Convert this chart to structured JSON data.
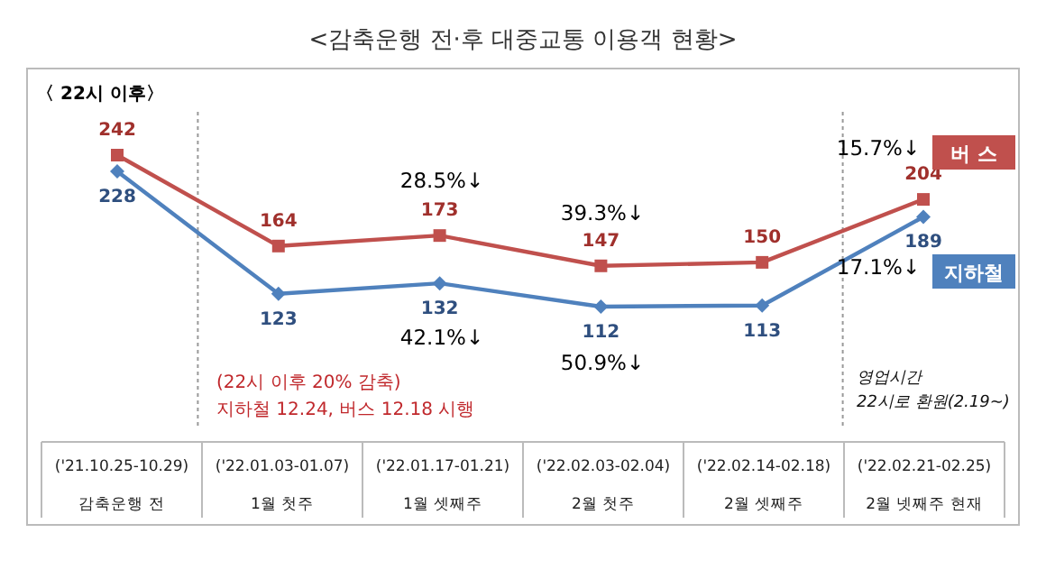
{
  "chart_data": {
    "type": "line",
    "title": "<감축운행 전·후 대중교통 이용객 현황>",
    "subtitle": "〈 22시 이후〉",
    "categories": [
      "('21.10.25-10.29)\n감축운행 전",
      "('22.01.03-01.07)\n1월 첫주",
      "('22.01.17-01.21)\n1월 셋째주",
      "('22.02.03-02.04)\n2월 첫주",
      "('22.02.14-02.18)\n2월 셋째주",
      "('22.02.21-02.25)\n2월 넷째주 현재"
    ],
    "series": [
      {
        "name": "버 스",
        "color": "#c0504d",
        "marker": "square",
        "values": [
          242,
          164,
          173,
          147,
          150,
          204
        ]
      },
      {
        "name": "지하철",
        "color": "#4f81bd",
        "marker": "diamond",
        "values": [
          228,
          123,
          132,
          112,
          113,
          189
        ]
      }
    ],
    "data_labels": true,
    "annotations": [
      "28.5%↓",
      "42.1%↓",
      "39.3%↓",
      "50.9%↓",
      "15.7%↓",
      "17.1%↓",
      "(22시 이후 20% 감축)\n지하철 12.24, 버스 12.18 시행",
      "영업시간\n22시로 환원(2.19~)"
    ],
    "grid": false,
    "legend": false
  }
}
